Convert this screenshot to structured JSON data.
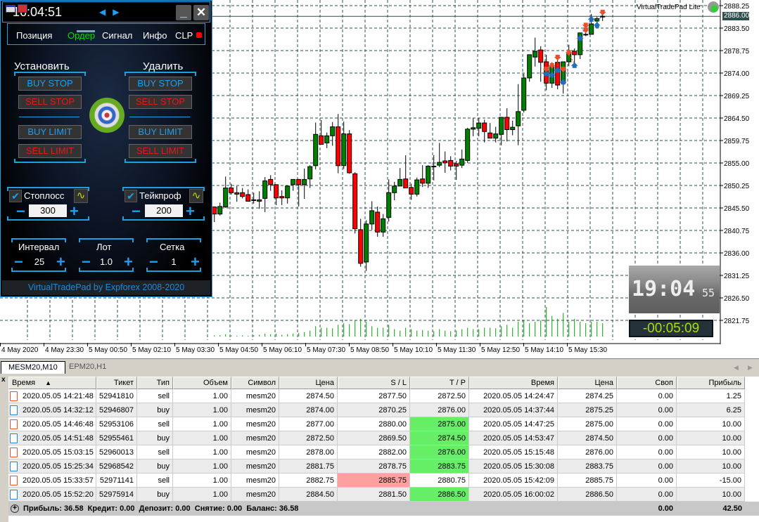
{
  "chart": {
    "symbol_tab_active": "MESM20,M10",
    "symbol_tab_other": "EPM20,H1",
    "indicator_label": "VirtualTradePad Lite",
    "current_price": "2886.00",
    "current_price_value": 2886.0,
    "price_ticks": [
      "2888.25",
      "2883.50",
      "2878.75",
      "2874.00",
      "2869.25",
      "2864.50",
      "2859.75",
      "2855.00",
      "2850.25",
      "2845.50",
      "2840.75",
      "2836.00",
      "2831.25",
      "2826.50",
      "2821.75"
    ],
    "time_ticks": [
      "4 May 2020",
      "4 May 23:30",
      "5 May 00:50",
      "5 May 02:10",
      "5 May 03:30",
      "5 May 04:50",
      "5 May 06:10",
      "5 May 07:30",
      "5 May 08:50",
      "5 May 10:10",
      "5 May 11:30",
      "5 May 12:50",
      "5 May 14:10",
      "5 May 15:30"
    ],
    "colors": {
      "bull": "#008000",
      "bear": "#ff0000",
      "grid": "#2f4f4f",
      "buy": "#1e6fc0",
      "sell": "#e8502a",
      "volume": "#00a000"
    },
    "last_bar_time": "16:00",
    "bar_minutes": 10
  },
  "chart_data": {
    "type": "candlestick",
    "ylim": [
      2819.5,
      2889.5
    ],
    "ohlc": [
      [
        2845.8,
        2845.9,
        2842.6,
        2844.3
      ],
      [
        2844.3,
        2846.7,
        2844.0,
        2845.9
      ],
      [
        2845.8,
        2852.2,
        2845.6,
        2849.8
      ],
      [
        2849.8,
        2850.7,
        2848.4,
        2848.8
      ],
      [
        2848.8,
        2850.2,
        2846.9,
        2848.5
      ],
      [
        2848.8,
        2849.8,
        2847.6,
        2848.0
      ],
      [
        2848.4,
        2849.5,
        2846.9,
        2847.0
      ],
      [
        2847.3,
        2848.8,
        2846.5,
        2847.3
      ],
      [
        2847.3,
        2849.1,
        2845.4,
        2847.0
      ],
      [
        2847.6,
        2852.1,
        2844.7,
        2851.3
      ],
      [
        2851.6,
        2852.5,
        2849.2,
        2850.5
      ],
      [
        2850.5,
        2850.5,
        2846.2,
        2847.7
      ],
      [
        2848.0,
        2849.3,
        2846.2,
        2847.7
      ],
      [
        2847.7,
        2850.2,
        2846.5,
        2850.2
      ],
      [
        2850.5,
        2851.6,
        2849.2,
        2851.6
      ],
      [
        2851.6,
        2851.6,
        2845.9,
        2850.5
      ],
      [
        2850.5,
        2853.9,
        2847.5,
        2851.6
      ],
      [
        2851.7,
        2854.6,
        2849.8,
        2854.3
      ],
      [
        2854.5,
        2863.6,
        2853.7,
        2861.1
      ],
      [
        2860.8,
        2864.1,
        2859.0,
        2859.0
      ],
      [
        2859.3,
        2861.5,
        2858.2,
        2860.8
      ],
      [
        2860.8,
        2863.7,
        2858.7,
        2862.7
      ],
      [
        2862.7,
        2865.4,
        2852.9,
        2854.5
      ],
      [
        2854.5,
        2863.8,
        2853.8,
        2861.2
      ],
      [
        2861.2,
        2862.0,
        2852.8,
        2853.0
      ],
      [
        2852.8,
        2853.1,
        2840.2,
        2841.2
      ],
      [
        2841.0,
        2843.3,
        2833.2,
        2833.9
      ],
      [
        2834.2,
        2843.0,
        2832.3,
        2842.2
      ],
      [
        2842.2,
        2847.0,
        2841.0,
        2845.0
      ],
      [
        2844.7,
        2845.9,
        2839.5,
        2840.5
      ],
      [
        2840.5,
        2844.3,
        2839.5,
        2843.3
      ],
      [
        2843.6,
        2851.6,
        2842.7,
        2848.8
      ],
      [
        2848.8,
        2851.1,
        2847.2,
        2850.2
      ],
      [
        2850.2,
        2854.0,
        2850.2,
        2851.6
      ],
      [
        2851.7,
        2856.7,
        2849.8,
        2849.8
      ],
      [
        2849.9,
        2850.7,
        2847.3,
        2848.5
      ],
      [
        2848.5,
        2852.0,
        2848.0,
        2851.5
      ],
      [
        2851.7,
        2854.6,
        2850.0,
        2850.8
      ],
      [
        2850.8,
        2854.6,
        2849.8,
        2854.4
      ],
      [
        2854.4,
        2856.7,
        2851.4,
        2854.4
      ],
      [
        2854.6,
        2859.3,
        2854.2,
        2855.2
      ],
      [
        2855.5,
        2857.5,
        2853.0,
        2855.1
      ],
      [
        2855.6,
        2856.5,
        2853.5,
        2854.4
      ],
      [
        2854.9,
        2855.5,
        2851.5,
        2854.4
      ],
      [
        2854.6,
        2857.9,
        2854.0,
        2855.9
      ],
      [
        2855.6,
        2862.5,
        2855.1,
        2862.2
      ],
      [
        2862.2,
        2864.5,
        2860.7,
        2862.5
      ],
      [
        2862.4,
        2864.5,
        2860.7,
        2863.5
      ],
      [
        2863.5,
        2864.2,
        2859.4,
        2861.7
      ],
      [
        2861.4,
        2863.5,
        2860.3,
        2860.3
      ],
      [
        2860.3,
        2862.7,
        2859.4,
        2861.2
      ],
      [
        2861.1,
        2864.7,
        2858.8,
        2864.7
      ],
      [
        2864.7,
        2866.6,
        2859.6,
        2862.1
      ],
      [
        2862.1,
        2864.0,
        2860.9,
        2862.6
      ],
      [
        2862.9,
        2871.7,
        2858.8,
        2865.9
      ],
      [
        2866.2,
        2873.9,
        2865.7,
        2873.0
      ],
      [
        2873.0,
        2877.9,
        2872.2,
        2877.9
      ],
      [
        2877.4,
        2881.5,
        2875.4,
        2878.6
      ],
      [
        2878.9,
        2879.7,
        2872.2,
        2876.3
      ],
      [
        2876.4,
        2877.9,
        2870.4,
        2871.9
      ],
      [
        2871.9,
        2876.3,
        2870.9,
        2875.5
      ],
      [
        2876.3,
        2877.9,
        2870.6,
        2871.5
      ],
      [
        2871.9,
        2876.4,
        2869.7,
        2876.4
      ],
      [
        2876.4,
        2880.0,
        2875.5,
        2878.2
      ],
      [
        2878.6,
        2879.2,
        2876.0,
        2877.9
      ],
      [
        2877.9,
        2882.5,
        2877.0,
        2882.5
      ],
      [
        2882.2,
        2882.9,
        2881.8,
        2882.2
      ],
      [
        2882.2,
        2886.5,
        2882.2,
        2884.4
      ],
      [
        2885.0,
        2885.9,
        2884.4,
        2885.5
      ],
      [
        2885.9,
        2886.7,
        2885.0,
        2886.0
      ]
    ],
    "volume_relative": [
      0.04,
      0.05,
      0.08,
      0.04,
      0.03,
      0.04,
      0.03,
      0.05,
      0.06,
      0.1,
      0.08,
      0.1,
      0.06,
      0.08,
      0.1,
      0.12,
      0.15,
      0.2,
      0.35,
      0.3,
      0.3,
      0.28,
      0.4,
      0.45,
      0.42,
      0.55,
      0.6,
      0.5,
      0.35,
      0.3,
      0.3,
      0.4,
      0.25,
      0.2,
      0.3,
      0.25,
      0.2,
      0.22,
      0.2,
      0.18,
      0.25,
      0.2,
      0.18,
      0.2,
      0.25,
      0.3,
      0.25,
      0.25,
      0.3,
      0.3,
      0.28,
      0.35,
      0.4,
      0.3,
      0.5,
      0.55,
      0.45,
      0.5,
      0.55,
      1.0,
      0.7,
      0.6,
      0.8,
      0.5,
      0.6,
      0.5,
      0.45,
      0.5,
      0.5,
      0.45
    ]
  },
  "clock": {
    "hours_minutes": "19:04",
    "seconds": "55",
    "countdown": "-00:05:09"
  },
  "panel": {
    "time": "16:04:51",
    "nav_arrows": "◀▶",
    "minimize": "_",
    "close": "✕",
    "tabs": [
      "Позиция",
      "Ордер",
      "Сигнал",
      "Инфо",
      "CLP"
    ],
    "active_tab": "Ордер",
    "set_header": "Установить",
    "delete_header": "Удалить",
    "buy_stop": "BUY STOP",
    "sell_stop": "SELL STOP",
    "buy_limit": "BUY LIMIT",
    "sell_limit": "SELL LIMIT",
    "stoploss_label": "Стоплосс",
    "stoploss_value": "300",
    "takeprofit_label": "Тейкпроф",
    "takeprofit_value": "200",
    "interval_label": "Интервал",
    "interval_value": "25",
    "lot_label": "Лот",
    "lot_value": "1.0",
    "grid_label": "Сетка",
    "grid_value": "1",
    "minus": "−",
    "plus": "+",
    "check": "✔",
    "wave": "∿",
    "footer": "VirtualTradePad by Expforex 2008-2020",
    "colors": {
      "accent": "#1ea0e0",
      "active_tab": "#00e000",
      "sell": "#e61919",
      "buy": "#1e9ef0",
      "clp_dot": "#ff0000"
    }
  },
  "terminal": {
    "close_icon": "x",
    "columns": [
      "Время",
      "Тикет",
      "Тип",
      "Объем",
      "Символ",
      "Цена",
      "S / L",
      "T / P",
      "Время",
      "Цена",
      "Своп",
      "Прибыль"
    ],
    "sort_indicator": "▲",
    "rows": [
      {
        "open_time": "2020.05.05 14:21:48",
        "ticket": "52941810",
        "type": "sell",
        "volume": "1.00",
        "symbol": "mesm20",
        "open_price": "2874.50",
        "sl": "2877.50",
        "tp": "2872.50",
        "close_time": "2020.05.05 14:24:47",
        "close_price": "2874.25",
        "swap": "0.00",
        "profit": "1.25",
        "hit": ""
      },
      {
        "open_time": "2020.05.05 14:32:12",
        "ticket": "52946807",
        "type": "buy",
        "volume": "1.00",
        "symbol": "mesm20",
        "open_price": "2874.00",
        "sl": "2870.25",
        "tp": "2876.00",
        "close_time": "2020.05.05 14:37:44",
        "close_price": "2875.25",
        "swap": "0.00",
        "profit": "6.25",
        "hit": ""
      },
      {
        "open_time": "2020.05.05 14:46:48",
        "ticket": "52953106",
        "type": "sell",
        "volume": "1.00",
        "symbol": "mesm20",
        "open_price": "2877.00",
        "sl": "2880.00",
        "tp": "2875.00",
        "close_time": "2020.05.05 14:47:25",
        "close_price": "2875.00",
        "swap": "0.00",
        "profit": "10.00",
        "hit": "tp"
      },
      {
        "open_time": "2020.05.05 14:51:48",
        "ticket": "52955461",
        "type": "buy",
        "volume": "1.00",
        "symbol": "mesm20",
        "open_price": "2872.50",
        "sl": "2869.50",
        "tp": "2874.50",
        "close_time": "2020.05.05 14:53:47",
        "close_price": "2874.50",
        "swap": "0.00",
        "profit": "10.00",
        "hit": "tp"
      },
      {
        "open_time": "2020.05.05 15:03:15",
        "ticket": "52960013",
        "type": "sell",
        "volume": "1.00",
        "symbol": "mesm20",
        "open_price": "2878.00",
        "sl": "2882.00",
        "tp": "2876.00",
        "close_time": "2020.05.05 15:15:48",
        "close_price": "2876.00",
        "swap": "0.00",
        "profit": "10.00",
        "hit": "tp"
      },
      {
        "open_time": "2020.05.05 15:25:34",
        "ticket": "52968542",
        "type": "buy",
        "volume": "1.00",
        "symbol": "mesm20",
        "open_price": "2881.75",
        "sl": "2878.75",
        "tp": "2883.75",
        "close_time": "2020.05.05 15:30:08",
        "close_price": "2883.75",
        "swap": "0.00",
        "profit": "10.00",
        "hit": "tp"
      },
      {
        "open_time": "2020.05.05 15:33:57",
        "ticket": "52971141",
        "type": "sell",
        "volume": "1.00",
        "symbol": "mesm20",
        "open_price": "2882.75",
        "sl": "2885.75",
        "tp": "2880.75",
        "close_time": "2020.05.05 15:42:09",
        "close_price": "2885.75",
        "swap": "0.00",
        "profit": "-15.00",
        "hit": "sl"
      },
      {
        "open_time": "2020.05.05 15:52:20",
        "ticket": "52975914",
        "type": "buy",
        "volume": "1.00",
        "symbol": "mesm20",
        "open_price": "2884.50",
        "sl": "2881.50",
        "tp": "2886.50",
        "close_time": "2020.05.05 16:00:02",
        "close_price": "2886.50",
        "swap": "0.00",
        "profit": "10.00",
        "hit": "tp"
      }
    ],
    "summary": {
      "text": "Прибыль: 36.58  Кредит: 0.00  Депозит: 0.00  Снятие: 0.00  Баланс: 36.58",
      "swap_total": "0.00",
      "profit_total": "42.50"
    },
    "colors": {
      "tp_hit": "#66ee66",
      "sl_hit": "#ffa0a0",
      "sell_icon": "#e8502a",
      "buy_icon": "#2a80c8"
    }
  }
}
